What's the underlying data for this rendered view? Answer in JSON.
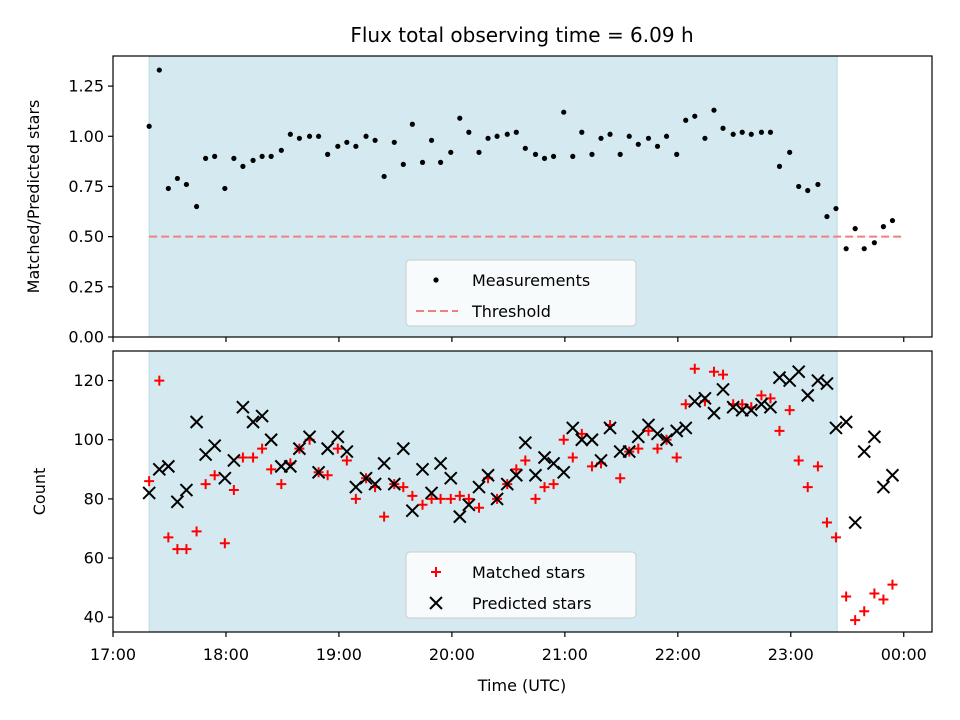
{
  "title": "Flux total observing time = 6.09 h",
  "colors": {
    "shade": "#d4eaf0",
    "measure": "#000000",
    "threshold": "#f08080",
    "matched": "#ff0000",
    "predicted": "#000000"
  },
  "x_axis": {
    "label": "Time (UTC)",
    "range_hours": [
      17.0,
      24.25
    ],
    "ticks": [
      {
        "hour": 17,
        "label": "17:00"
      },
      {
        "hour": 18,
        "label": "18:00"
      },
      {
        "hour": 19,
        "label": "19:00"
      },
      {
        "hour": 20,
        "label": "20:00"
      },
      {
        "hour": 21,
        "label": "21:00"
      },
      {
        "hour": 22,
        "label": "22:00"
      },
      {
        "hour": 23,
        "label": "23:00"
      },
      {
        "hour": 24,
        "label": "00:00"
      }
    ]
  },
  "chart_data": [
    {
      "type": "scatter",
      "panel": "top",
      "ylabel": "Matched/Predicted stars",
      "ylim": [
        0.0,
        1.4
      ],
      "yticks": [
        {
          "v": 0.0,
          "label": "0.00"
        },
        {
          "v": 0.25,
          "label": "0.25"
        },
        {
          "v": 0.5,
          "label": "0.50"
        },
        {
          "v": 0.75,
          "label": "0.75"
        },
        {
          "v": 1.0,
          "label": "1.00"
        },
        {
          "v": 1.25,
          "label": "1.25"
        }
      ],
      "shaded_span_hours": [
        17.32,
        23.41
      ],
      "threshold": {
        "value": 0.5,
        "x_range_hours": [
          17.32,
          24.0
        ],
        "label": "Threshold"
      },
      "legend": {
        "position": "lower center",
        "entries": [
          "Measurements",
          "Threshold"
        ]
      },
      "series": [
        {
          "name": "Measurements",
          "points": [
            [
              17.32,
              1.05
            ],
            [
              17.41,
              1.33
            ],
            [
              17.49,
              0.74
            ],
            [
              17.57,
              0.79
            ],
            [
              17.65,
              0.76
            ],
            [
              17.74,
              0.65
            ],
            [
              17.82,
              0.89
            ],
            [
              17.9,
              0.9
            ],
            [
              17.99,
              0.74
            ],
            [
              18.07,
              0.89
            ],
            [
              18.15,
              0.85
            ],
            [
              18.24,
              0.88
            ],
            [
              18.32,
              0.9
            ],
            [
              18.4,
              0.9
            ],
            [
              18.49,
              0.93
            ],
            [
              18.57,
              1.01
            ],
            [
              18.65,
              0.99
            ],
            [
              18.74,
              1.0
            ],
            [
              18.82,
              1.0
            ],
            [
              18.9,
              0.91
            ],
            [
              18.99,
              0.95
            ],
            [
              19.07,
              0.97
            ],
            [
              19.15,
              0.95
            ],
            [
              19.24,
              1.0
            ],
            [
              19.32,
              0.98
            ],
            [
              19.4,
              0.8
            ],
            [
              19.49,
              0.97
            ],
            [
              19.57,
              0.86
            ],
            [
              19.65,
              1.06
            ],
            [
              19.74,
              0.87
            ],
            [
              19.82,
              0.98
            ],
            [
              19.9,
              0.87
            ],
            [
              19.99,
              0.92
            ],
            [
              20.07,
              1.09
            ],
            [
              20.15,
              1.02
            ],
            [
              20.24,
              0.92
            ],
            [
              20.32,
              0.99
            ],
            [
              20.4,
              1.0
            ],
            [
              20.49,
              1.01
            ],
            [
              20.57,
              1.02
            ],
            [
              20.65,
              0.94
            ],
            [
              20.74,
              0.91
            ],
            [
              20.82,
              0.89
            ],
            [
              20.9,
              0.9
            ],
            [
              20.99,
              1.12
            ],
            [
              21.07,
              0.9
            ],
            [
              21.15,
              1.02
            ],
            [
              21.24,
              0.91
            ],
            [
              21.32,
              0.99
            ],
            [
              21.4,
              1.01
            ],
            [
              21.49,
              0.91
            ],
            [
              21.57,
              1.0
            ],
            [
              21.65,
              0.96
            ],
            [
              21.74,
              0.99
            ],
            [
              21.82,
              0.95
            ],
            [
              21.9,
              1.0
            ],
            [
              21.99,
              0.91
            ],
            [
              22.07,
              1.08
            ],
            [
              22.15,
              1.1
            ],
            [
              22.24,
              0.99
            ],
            [
              22.32,
              1.13
            ],
            [
              22.4,
              1.04
            ],
            [
              22.49,
              1.01
            ],
            [
              22.57,
              1.02
            ],
            [
              22.65,
              1.01
            ],
            [
              22.74,
              1.02
            ],
            [
              22.82,
              1.02
            ],
            [
              22.9,
              0.85
            ],
            [
              22.99,
              0.92
            ],
            [
              23.07,
              0.75
            ],
            [
              23.15,
              0.73
            ],
            [
              23.24,
              0.76
            ],
            [
              23.32,
              0.6
            ],
            [
              23.4,
              0.64
            ],
            [
              23.49,
              0.44
            ],
            [
              23.57,
              0.54
            ],
            [
              23.65,
              0.44
            ],
            [
              23.74,
              0.47
            ],
            [
              23.82,
              0.55
            ],
            [
              23.9,
              0.58
            ]
          ]
        }
      ]
    },
    {
      "type": "scatter",
      "panel": "bottom",
      "ylabel": "Count",
      "ylim": [
        35,
        130
      ],
      "yticks": [
        {
          "v": 40,
          "label": "40"
        },
        {
          "v": 60,
          "label": "60"
        },
        {
          "v": 80,
          "label": "80"
        },
        {
          "v": 100,
          "label": "100"
        },
        {
          "v": 120,
          "label": "120"
        }
      ],
      "shaded_span_hours": [
        17.32,
        23.41
      ],
      "legend": {
        "position": "lower center",
        "entries": [
          "Matched stars",
          "Predicted stars"
        ]
      },
      "series": [
        {
          "name": "Matched stars",
          "marker": "plus",
          "points": [
            [
              17.32,
              86
            ],
            [
              17.41,
              120
            ],
            [
              17.49,
              67
            ],
            [
              17.57,
              63
            ],
            [
              17.65,
              63
            ],
            [
              17.74,
              69
            ],
            [
              17.82,
              85
            ],
            [
              17.9,
              88
            ],
            [
              17.99,
              65
            ],
            [
              18.07,
              83
            ],
            [
              18.15,
              94
            ],
            [
              18.24,
              94
            ],
            [
              18.32,
              97
            ],
            [
              18.4,
              90
            ],
            [
              18.49,
              85
            ],
            [
              18.57,
              92
            ],
            [
              18.65,
              97
            ],
            [
              18.74,
              100
            ],
            [
              18.82,
              89
            ],
            [
              18.9,
              88
            ],
            [
              18.99,
              97
            ],
            [
              19.07,
              93
            ],
            [
              19.15,
              80
            ],
            [
              19.24,
              87
            ],
            [
              19.32,
              84
            ],
            [
              19.4,
              74
            ],
            [
              19.49,
              85
            ],
            [
              19.57,
              84
            ],
            [
              19.65,
              81
            ],
            [
              19.74,
              78
            ],
            [
              19.82,
              80
            ],
            [
              19.9,
              80
            ],
            [
              19.99,
              80
            ],
            [
              20.07,
              81
            ],
            [
              20.15,
              80
            ],
            [
              20.24,
              77
            ],
            [
              20.32,
              87
            ],
            [
              20.4,
              80
            ],
            [
              20.49,
              85
            ],
            [
              20.57,
              90
            ],
            [
              20.65,
              93
            ],
            [
              20.74,
              80
            ],
            [
              20.82,
              84
            ],
            [
              20.9,
              85
            ],
            [
              20.99,
              100
            ],
            [
              21.07,
              94
            ],
            [
              21.15,
              102
            ],
            [
              21.24,
              91
            ],
            [
              21.32,
              92
            ],
            [
              21.4,
              105
            ],
            [
              21.49,
              87
            ],
            [
              21.57,
              96
            ],
            [
              21.65,
              97
            ],
            [
              21.74,
              103
            ],
            [
              21.82,
              97
            ],
            [
              21.9,
              100
            ],
            [
              21.99,
              94
            ],
            [
              22.07,
              112
            ],
            [
              22.15,
              124
            ],
            [
              22.24,
              113
            ],
            [
              22.32,
              123
            ],
            [
              22.4,
              122
            ],
            [
              22.49,
              112
            ],
            [
              22.57,
              112
            ],
            [
              22.65,
              111
            ],
            [
              22.74,
              115
            ],
            [
              22.82,
              114
            ],
            [
              22.9,
              103
            ],
            [
              22.99,
              110
            ],
            [
              23.07,
              93
            ],
            [
              23.15,
              84
            ],
            [
              23.24,
              91
            ],
            [
              23.32,
              72
            ],
            [
              23.4,
              67
            ],
            [
              23.49,
              47
            ],
            [
              23.57,
              39
            ],
            [
              23.65,
              42
            ],
            [
              23.74,
              48
            ],
            [
              23.82,
              46
            ],
            [
              23.9,
              51
            ]
          ]
        },
        {
          "name": "Predicted stars",
          "marker": "x",
          "points": [
            [
              17.32,
              82
            ],
            [
              17.41,
              90
            ],
            [
              17.49,
              91
            ],
            [
              17.57,
              79
            ],
            [
              17.65,
              83
            ],
            [
              17.74,
              106
            ],
            [
              17.82,
              95
            ],
            [
              17.9,
              98
            ],
            [
              17.99,
              87
            ],
            [
              18.07,
              93
            ],
            [
              18.15,
              111
            ],
            [
              18.24,
              106
            ],
            [
              18.32,
              108
            ],
            [
              18.4,
              100
            ],
            [
              18.49,
              91
            ],
            [
              18.57,
              91
            ],
            [
              18.65,
              97
            ],
            [
              18.74,
              101
            ],
            [
              18.82,
              89
            ],
            [
              18.9,
              97
            ],
            [
              18.99,
              101
            ],
            [
              19.07,
              96
            ],
            [
              19.15,
              84
            ],
            [
              19.24,
              87
            ],
            [
              19.32,
              85
            ],
            [
              19.4,
              92
            ],
            [
              19.49,
              85
            ],
            [
              19.57,
              97
            ],
            [
              19.65,
              76
            ],
            [
              19.74,
              90
            ],
            [
              19.82,
              82
            ],
            [
              19.9,
              92
            ],
            [
              19.99,
              87
            ],
            [
              20.07,
              74
            ],
            [
              20.15,
              78
            ],
            [
              20.24,
              84
            ],
            [
              20.32,
              88
            ],
            [
              20.4,
              80
            ],
            [
              20.49,
              85
            ],
            [
              20.57,
              88
            ],
            [
              20.65,
              99
            ],
            [
              20.74,
              88
            ],
            [
              20.82,
              94
            ],
            [
              20.9,
              92
            ],
            [
              20.99,
              89
            ],
            [
              21.07,
              104
            ],
            [
              21.15,
              100
            ],
            [
              21.24,
              100
            ],
            [
              21.32,
              93
            ],
            [
              21.4,
              104
            ],
            [
              21.49,
              96
            ],
            [
              21.57,
              96
            ],
            [
              21.65,
              101
            ],
            [
              21.74,
              105
            ],
            [
              21.82,
              102
            ],
            [
              21.9,
              100
            ],
            [
              21.99,
              103
            ],
            [
              22.07,
              104
            ],
            [
              22.15,
              113
            ],
            [
              22.24,
              114
            ],
            [
              22.32,
              109
            ],
            [
              22.4,
              117
            ],
            [
              22.49,
              111
            ],
            [
              22.57,
              110
            ],
            [
              22.65,
              110
            ],
            [
              22.74,
              112
            ],
            [
              22.82,
              111
            ],
            [
              22.9,
              121
            ],
            [
              22.99,
              120
            ],
            [
              23.07,
              123
            ],
            [
              23.15,
              115
            ],
            [
              23.24,
              120
            ],
            [
              23.32,
              119
            ],
            [
              23.4,
              104
            ],
            [
              23.49,
              106
            ],
            [
              23.57,
              72
            ],
            [
              23.65,
              96
            ],
            [
              23.74,
              101
            ],
            [
              23.82,
              84
            ],
            [
              23.9,
              88
            ]
          ]
        }
      ]
    }
  ]
}
